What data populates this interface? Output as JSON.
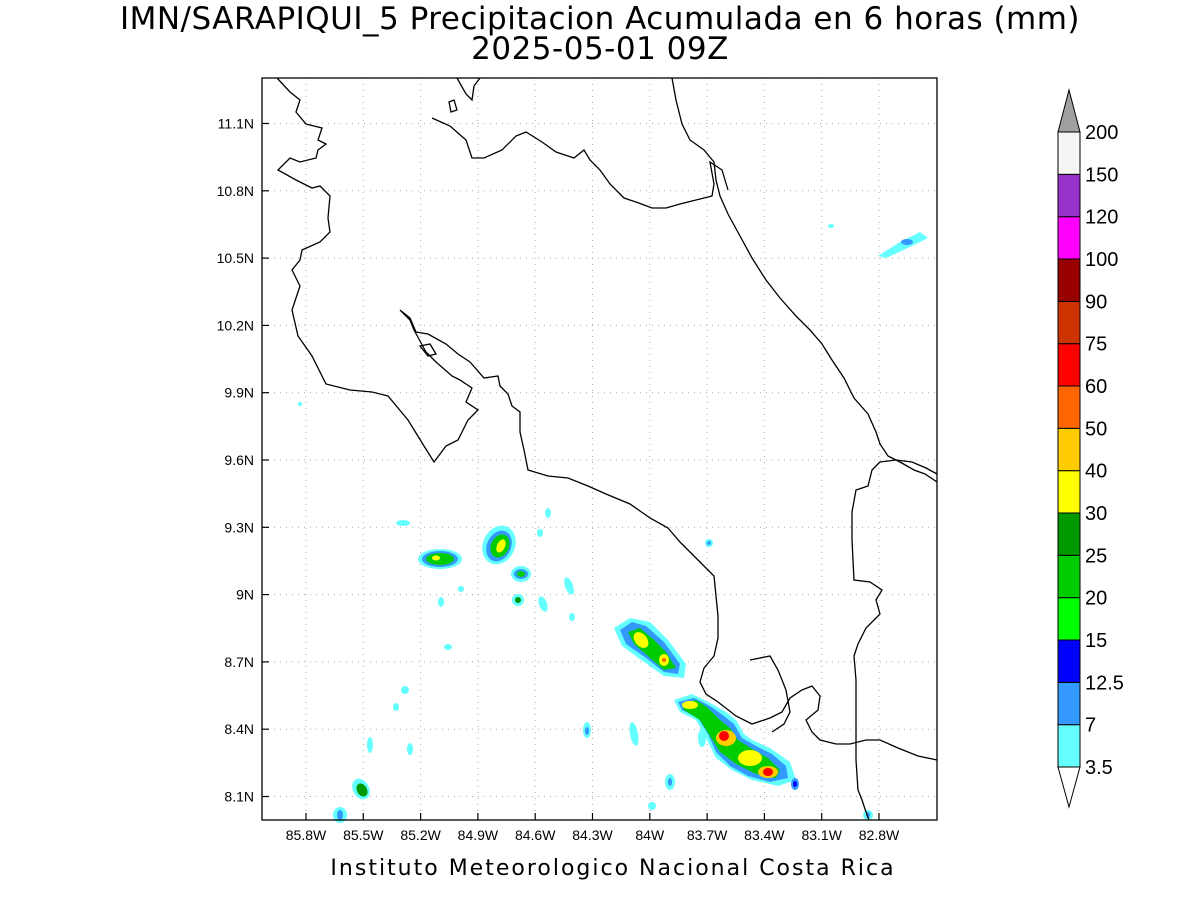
{
  "title": {
    "line1": "IMN/SARAPIQUI_5 Precipitacion Acumulada en 6 horas (mm)",
    "line2": "2025-05-01 09Z"
  },
  "credit": "Instituto Meteorologico Nacional Costa Rica",
  "map": {
    "lon_range": [
      -86.0,
      -83.0
    ],
    "lat_range": [
      8.0,
      11.2
    ],
    "lat_ticks": [
      {
        "label": "11.1N",
        "value": 11.1
      },
      {
        "label": "10.8N",
        "value": 10.8
      },
      {
        "label": "10.5N",
        "value": 10.5
      },
      {
        "label": "10.2N",
        "value": 10.2
      },
      {
        "label": "9.9N",
        "value": 9.9
      },
      {
        "label": "9.6N",
        "value": 9.6
      },
      {
        "label": "9.3N",
        "value": 9.3
      },
      {
        "label": "9N",
        "value": 9.0
      },
      {
        "label": "8.7N",
        "value": 8.7
      },
      {
        "label": "8.4N",
        "value": 8.4
      },
      {
        "label": "8.1N",
        "value": 8.1
      }
    ],
    "lon_ticks": [
      {
        "label": "85.8W",
        "value": -85.8
      },
      {
        "label": "85.5W",
        "value": -85.5
      },
      {
        "label": "85.2W",
        "value": -85.2
      },
      {
        "label": "84.9W",
        "value": -84.9
      },
      {
        "label": "84.6W",
        "value": -84.6
      },
      {
        "label": "84.3W",
        "value": -84.3
      },
      {
        "label": "84W",
        "value": -84.0
      },
      {
        "label": "83.7W",
        "value": -83.7
      },
      {
        "label": "83.4W",
        "value": -83.4
      },
      {
        "label": "83.1W",
        "value": -83.1
      },
      {
        "label": "82.8W",
        "value": -82.8
      }
    ],
    "grid": "dotted"
  },
  "colorbar": {
    "levels": [
      {
        "label": "3.5",
        "color": "#66ffff"
      },
      {
        "label": "7",
        "color": "#3399ff"
      },
      {
        "label": "12.5",
        "color": "#0000ff"
      },
      {
        "label": "15",
        "color": "#00ff00"
      },
      {
        "label": "20",
        "color": "#00cc00"
      },
      {
        "label": "25",
        "color": "#009900"
      },
      {
        "label": "30",
        "color": "#ffff00"
      },
      {
        "label": "40",
        "color": "#ffcc00"
      },
      {
        "label": "50",
        "color": "#ff6600"
      },
      {
        "label": "60",
        "color": "#ff0000"
      },
      {
        "label": "75",
        "color": "#cc3300"
      },
      {
        "label": "90",
        "color": "#990000"
      },
      {
        "label": "100",
        "color": "#ff00ff"
      },
      {
        "label": "120",
        "color": "#9933cc"
      },
      {
        "label": "150",
        "color": "#f5f5f5"
      },
      {
        "label": "200",
        "color": "#a0a0a0"
      }
    ]
  }
}
